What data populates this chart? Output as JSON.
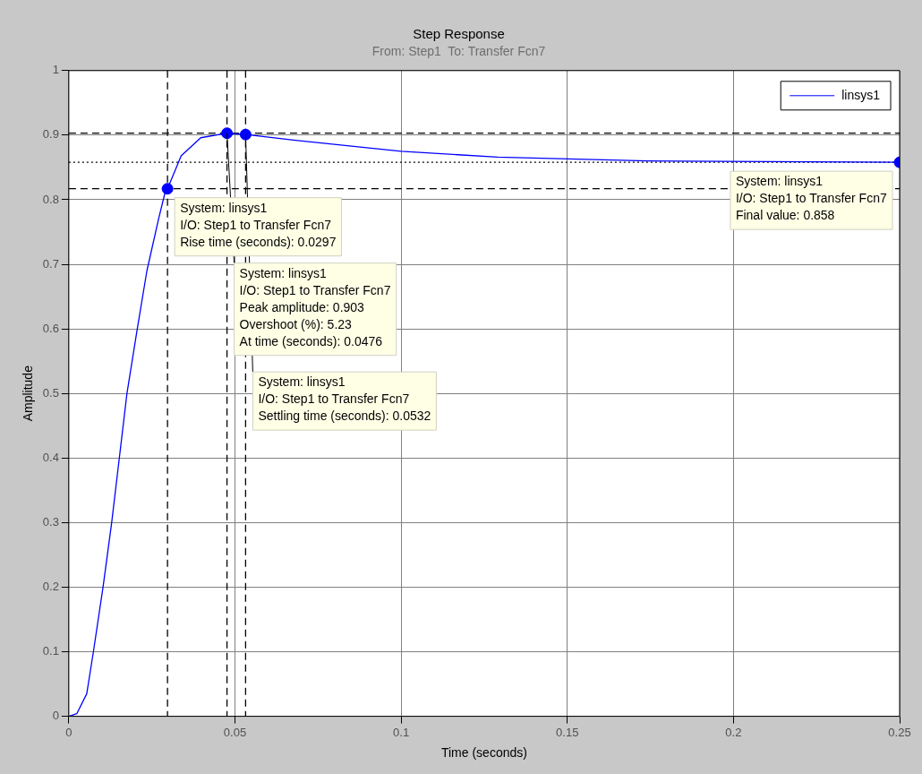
{
  "chart_data": {
    "type": "line",
    "title": "Step Response",
    "subtitle": "From: Step1  To: Transfer Fcn7",
    "xlabel": "Time (seconds)",
    "ylabel": "Amplitude",
    "series": [
      {
        "name": "linsys1",
        "color": "#0000ff",
        "marker": "none",
        "x": [
          0,
          0.0024,
          0.0054,
          0.0074,
          0.0103,
          0.0129,
          0.0152,
          0.0175,
          0.0206,
          0.0235,
          0.027,
          0.0289,
          0.0297,
          0.0338,
          0.0397,
          0.0476,
          0.0532,
          0.0682,
          0.1,
          0.129,
          0.174,
          0.25
        ],
        "values": [
          0,
          0.004,
          0.035,
          0.1,
          0.2,
          0.3,
          0.4,
          0.5,
          0.6,
          0.69,
          0.77,
          0.81,
          0.817,
          0.868,
          0.896,
          0.903,
          0.901,
          0.892,
          0.875,
          0.866,
          0.86,
          0.858
        ]
      },
      {
        "type": "scatter",
        "color": "#0000ff",
        "marker": "circle",
        "x": [
          0.0297,
          0.0476,
          0.0532,
          0.25
        ],
        "values": [
          0.817,
          0.903,
          0.901,
          0.858
        ]
      }
    ],
    "xlim": [
      0,
      0.25
    ],
    "xticks": [
      0,
      0.05,
      0.1,
      0.15,
      0.2,
      0.25
    ],
    "ylim": [
      0,
      1
    ],
    "yticks": [
      0,
      0.1,
      0.2,
      0.3,
      0.4,
      0.5,
      0.6,
      0.7,
      0.8,
      0.9,
      1
    ],
    "grid": true,
    "legend": "top right",
    "ref_lines": [
      {
        "axis": "y",
        "value": 0.903,
        "color": "#000000",
        "line_style": "dashed"
      },
      {
        "axis": "y",
        "value": 0.858,
        "color": "#000000",
        "line_style": "dotted"
      },
      {
        "axis": "y",
        "value": 0.817,
        "color": "#000000",
        "line_style": "dashed"
      },
      {
        "axis": "x",
        "value": 0.0297,
        "color": "#000000",
        "line_style": "dashed"
      },
      {
        "axis": "x",
        "value": 0.0476,
        "color": "#000000",
        "line_style": "dashed"
      },
      {
        "axis": "x",
        "value": 0.0532,
        "color": "#000000",
        "line_style": "dashed"
      }
    ],
    "annotations": [
      {
        "text": "System: linsys1\nI/O: Step1 to Transfer Fcn7\nRise time (seconds): 0.0297",
        "x": 0.0297,
        "y": 0.817
      },
      {
        "text": "System: linsys1\nI/O: Step1 to Transfer Fcn7\nPeak amplitude: 0.903\nOvershoot (%): 5.23\nAt time (seconds): 0.0476",
        "x": 0.0476,
        "y": 0.903
      },
      {
        "text": "System: linsys1\nI/O: Step1 to Transfer Fcn7\nSettling time (seconds): 0.0532",
        "x": 0.0532,
        "y": 0.901
      },
      {
        "text": "System: linsys1\nI/O: Step1 to Transfer Fcn7\nFinal value: 0.858",
        "x": 0.25,
        "y": 0.858
      }
    ]
  }
}
